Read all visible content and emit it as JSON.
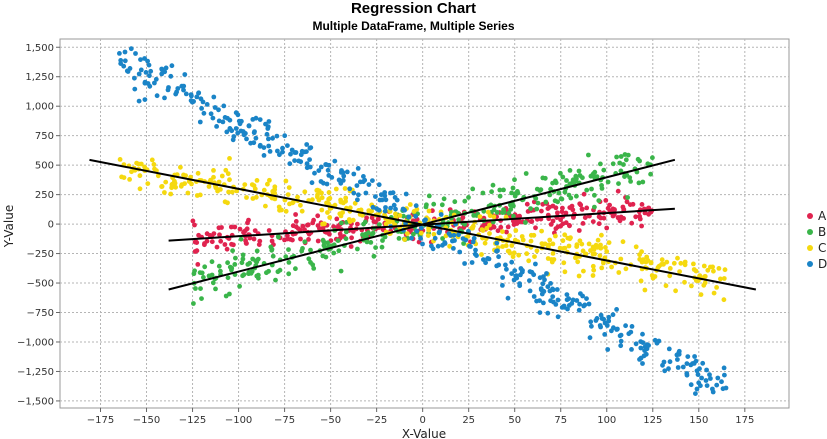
{
  "chart_data": {
    "type": "scatter",
    "title": "Regression Chart",
    "subtitle": "Multiple DataFrame, Multiple Series",
    "xlabel": "X-Value",
    "ylabel": "Y-Value",
    "xlim": [
      -197,
      199
    ],
    "ylim": [
      -1560,
      1570
    ],
    "x_ticks": [
      -175,
      -150,
      -125,
      -100,
      -75,
      -50,
      -25,
      0,
      25,
      50,
      75,
      100,
      125,
      150,
      175
    ],
    "y_ticks": [
      1500,
      1250,
      1000,
      750,
      500,
      250,
      0,
      -250,
      -500,
      -750,
      -1000,
      -1250,
      -1500
    ],
    "x_tick_labels": [
      "−175",
      "−150",
      "−125",
      "−100",
      "−75",
      "−50",
      "−25",
      "0",
      "25",
      "50",
      "75",
      "100",
      "125",
      "150",
      "175"
    ],
    "y_tick_labels": [
      "1,500",
      "1,250",
      "1,000",
      "750",
      "500",
      "250",
      "0",
      "−250",
      "−500",
      "−750",
      "−1,000",
      "−1,250",
      "−1,500"
    ],
    "grid": true,
    "legend_position": "right",
    "series": [
      {
        "name": "A",
        "color": "#e0234f",
        "x_range": [
          -125,
          125
        ],
        "slope": 1.05,
        "intercept": -5,
        "noise": 60,
        "count": 330
      },
      {
        "name": "B",
        "color": "#3ab54a",
        "x_range": [
          -125,
          125
        ],
        "slope": 4.1,
        "intercept": 0,
        "noise": 90,
        "count": 330
      },
      {
        "name": "C",
        "color": "#f5d90f",
        "x_range": [
          -165,
          165
        ],
        "slope": -2.9,
        "intercept": 0,
        "noise": 80,
        "count": 430
      },
      {
        "name": "D",
        "color": "#1a84c7",
        "x_range": [
          -165,
          165
        ],
        "slope": -8.5,
        "intercept": 0,
        "noise": 80,
        "count": 430
      }
    ],
    "regression_lines": [
      {
        "series": "A",
        "x": [
          -138,
          137
        ],
        "y": [
          -140,
          130
        ]
      },
      {
        "series": "B",
        "x": [
          -138,
          137
        ],
        "y": [
          -555,
          545
        ]
      },
      {
        "series": "C",
        "x": [
          -181,
          181
        ],
        "y": [
          545,
          -555
        ]
      }
    ]
  }
}
